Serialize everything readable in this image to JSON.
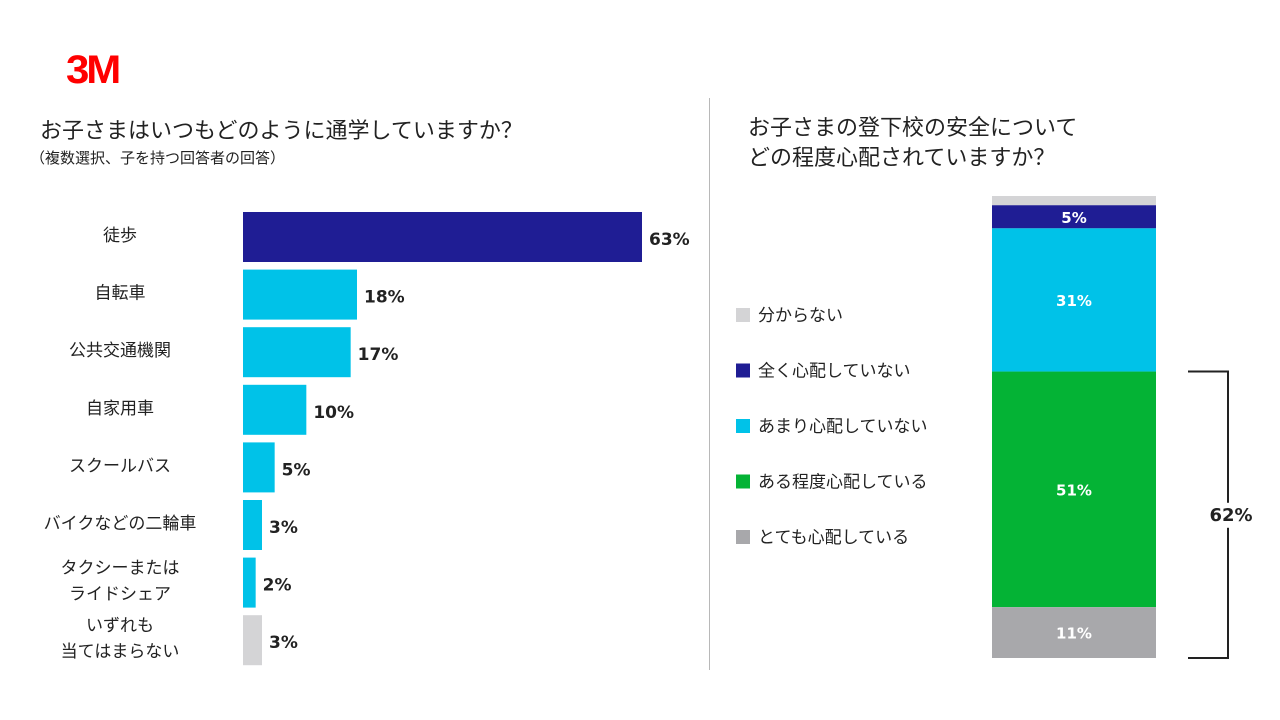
{
  "logo": {
    "text": "3M"
  },
  "left_chart": {
    "title": "お子さまはいつもどのように通学していますか？",
    "subtitle": "（複数選択、子を持つ回答者の回答）"
  },
  "right_chart": {
    "title_lines": [
      "お子さまの登下校の安全について",
      "どの程度心配されていますか？"
    ],
    "bracket_label": "62%"
  },
  "colors": {
    "dark_blue": "#1f1d94",
    "light_blue": "#00c2e8",
    "light_gray": "#d4d4d6",
    "green": "#04b335",
    "mid_gray": "#a8a8ab",
    "logo_red": "#ff0000"
  },
  "chart_data": [
    {
      "type": "bar",
      "orientation": "horizontal",
      "title": "お子さまはいつもどのように通学していますか？",
      "subtitle": "（複数選択、子を持つ回答者の回答）",
      "categories": [
        [
          "徒歩"
        ],
        [
          "自転車"
        ],
        [
          "公共交通機関"
        ],
        [
          "自家用車"
        ],
        [
          "スクールバス"
        ],
        [
          "バイクなどの二輪車"
        ],
        [
          "タクシーまたは",
          "ライドシェア"
        ],
        [
          "いずれも",
          "当てはまらない"
        ]
      ],
      "values": [
        63,
        18,
        17,
        10,
        5,
        3,
        2,
        3
      ],
      "value_labels": [
        "63%",
        "18%",
        "17%",
        "10%",
        "5%",
        "3%",
        "2%",
        "3%"
      ],
      "bar_colors": [
        "#1f1d94",
        "#00c2e8",
        "#00c2e8",
        "#00c2e8",
        "#00c2e8",
        "#00c2e8",
        "#00c2e8",
        "#d4d4d6"
      ],
      "unit": "%",
      "xlim": [
        0,
        63
      ]
    },
    {
      "type": "bar",
      "orientation": "stacked-vertical",
      "title": "お子さまの登下校の安全についてどの程度心配されていますか？",
      "legend_position": "left",
      "series": [
        {
          "name": "分からない",
          "value": 2,
          "label": "",
          "color": "#d4d4d6"
        },
        {
          "name": "全く心配していない",
          "value": 5,
          "label": "5%",
          "color": "#1f1d94"
        },
        {
          "name": "あまり心配していない",
          "value": 31,
          "label": "31%",
          "color": "#00c2e8"
        },
        {
          "name": "ある程度心配している",
          "value": 51,
          "label": "51%",
          "color": "#04b335"
        },
        {
          "name": "とても心配している",
          "value": 11,
          "label": "11%",
          "color": "#a8a8ab"
        }
      ],
      "bracket": {
        "label": "62%",
        "covers": [
          "ある程度心配している",
          "とても心配している"
        ]
      },
      "unit": "%"
    }
  ]
}
